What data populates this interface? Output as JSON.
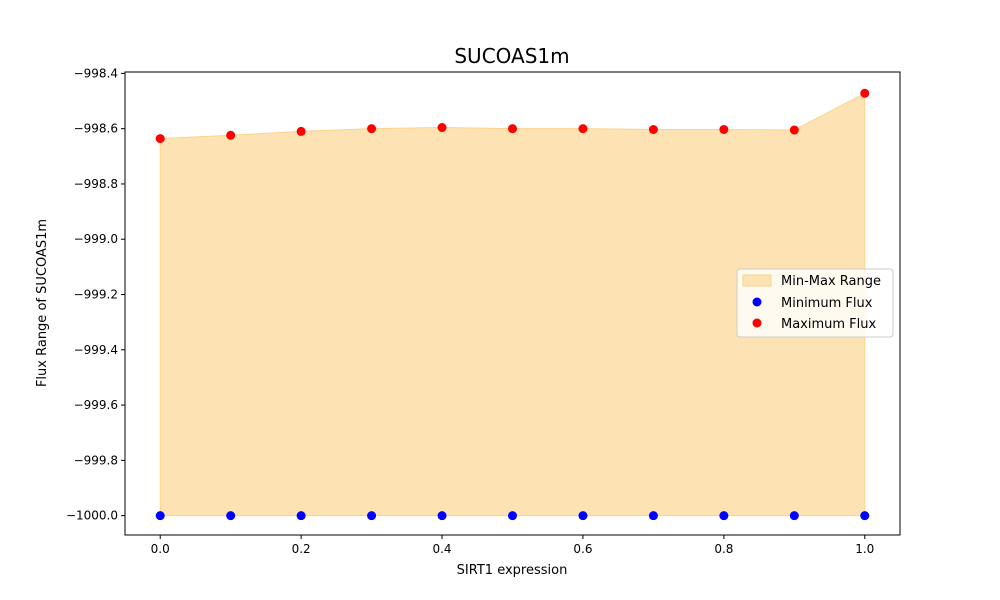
{
  "chart_data": {
    "type": "scatter",
    "title": "SUCOAS1m",
    "xlabel": "SIRT1 expression",
    "ylabel": "Flux Range of SUCOAS1m",
    "xlim": [
      -0.05,
      1.05
    ],
    "ylim": [
      -1000.07,
      -998.395
    ],
    "xticks": [
      0.0,
      0.2,
      0.4,
      0.6,
      0.8,
      1.0
    ],
    "xtick_labels": [
      "0.0",
      "0.2",
      "0.4",
      "0.6",
      "0.8",
      "1.0"
    ],
    "yticks": [
      -1000.0,
      -999.8,
      -999.6,
      -999.4,
      -999.2,
      -999.0,
      -998.8,
      -998.6,
      -998.4
    ],
    "ytick_labels": [
      "−1000.0",
      "−999.8",
      "−999.6",
      "−999.4",
      "−999.2",
      "−999.0",
      "−998.8",
      "−998.6",
      "−998.4"
    ],
    "grid": false,
    "legend_position": "right",
    "x": [
      0.0,
      0.1,
      0.2,
      0.3,
      0.4,
      0.5,
      0.6,
      0.7,
      0.8,
      0.9,
      1.0
    ],
    "series": [
      {
        "name": "Min-Max Range",
        "kind": "fill_between",
        "color": "#fde3b3",
        "edge_color": "#fbd38d"
      },
      {
        "name": "Minimum Flux",
        "kind": "scatter",
        "color": "#0000ff",
        "values": [
          -1000.0,
          -1000.0,
          -1000.0,
          -1000.0,
          -1000.0,
          -1000.0,
          -1000.0,
          -1000.0,
          -1000.0,
          -1000.0,
          -1000.0
        ]
      },
      {
        "name": "Maximum Flux",
        "kind": "scatter",
        "color": "#ff0000",
        "values": [
          -998.636,
          -998.624,
          -998.61,
          -998.6,
          -998.596,
          -998.6,
          -998.6,
          -998.603,
          -998.603,
          -998.605,
          -998.472
        ]
      }
    ]
  }
}
